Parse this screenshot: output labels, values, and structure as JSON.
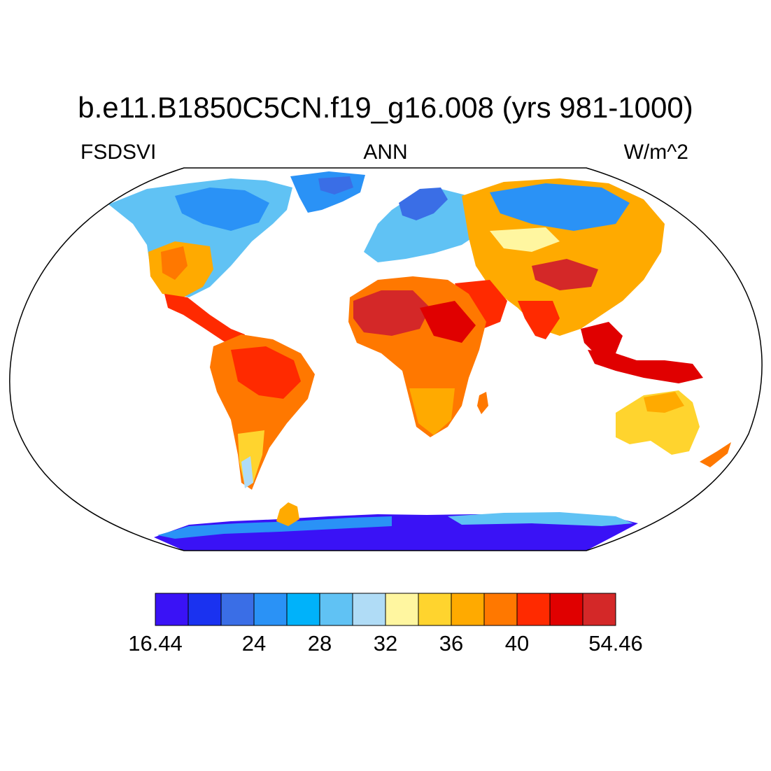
{
  "header": {
    "title": "b.e11.B1850C5CN.f19_g16.008 (yrs 981-1000)",
    "left_label": "FSDSVI",
    "center_label": "ANN",
    "right_label": "W/m^2"
  },
  "colorbar": {
    "colors": [
      "#3a12f6",
      "#1a32f0",
      "#3a6ee6",
      "#2a92f6",
      "#00b2fa",
      "#60c2f4",
      "#b0dcf6",
      "#fff6a0",
      "#ffd42e",
      "#ffaa00",
      "#ff7800",
      "#ff2a00",
      "#e00000",
      "#d42828"
    ],
    "labels": [
      {
        "boundary": 0,
        "text": "16.44"
      },
      {
        "boundary": 1.5,
        "text": "24"
      },
      {
        "boundary": 2.5,
        "text": "28"
      },
      {
        "boundary": 3.5,
        "text": "32"
      },
      {
        "boundary": 4.5,
        "text": "36"
      },
      {
        "boundary": 5.5,
        "text": "40"
      },
      {
        "boundary": 7,
        "text": "54.46"
      }
    ]
  }
}
